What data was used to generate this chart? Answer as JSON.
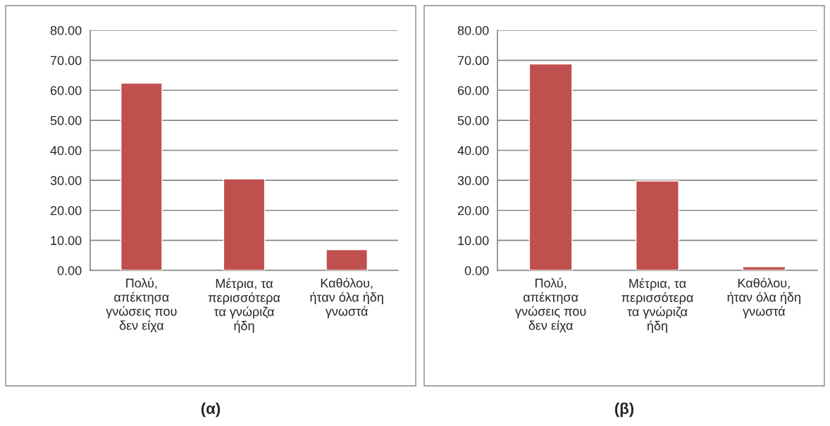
{
  "chart_data": [
    {
      "type": "bar",
      "title": "(α)",
      "categories": [
        "Πολύ,\nαπέκτησα\nγνώσεις που\nδεν είχα",
        "Μέτρια, τα\nπερισσότερα\nτα γνώριζα\nήδη",
        "Καθόλου,\nήταν όλα ήδη\nγνωστά"
      ],
      "values": [
        62.4,
        30.5,
        6.9
      ],
      "color": "#c0504d",
      "ylim": [
        0,
        80
      ],
      "yticks": [
        {
          "value": 0,
          "label": "0.00"
        },
        {
          "value": 10,
          "label": "10.00"
        },
        {
          "value": 20,
          "label": "20.00"
        },
        {
          "value": 30,
          "label": "30.00"
        },
        {
          "value": 40,
          "label": "40.00"
        },
        {
          "value": 50,
          "label": "50.00"
        },
        {
          "value": 60,
          "label": "60.00"
        },
        {
          "value": 70,
          "label": "70.00"
        },
        {
          "value": 80,
          "label": "80.00"
        }
      ],
      "grid": "y",
      "legend": false
    },
    {
      "type": "bar",
      "title": "(β)",
      "categories": [
        "Πολύ,\nαπέκτησα\nγνώσεις που\nδεν είχα",
        "Μέτρια, τα\nπερισσότερα\nτα γνώριζα\nήδη",
        "Καθόλου,\nήταν όλα ήδη\nγνωστά"
      ],
      "values": [
        68.8,
        29.8,
        1.2
      ],
      "color": "#c0504d",
      "ylim": [
        0,
        80
      ],
      "yticks": [
        {
          "value": 0,
          "label": "0.00"
        },
        {
          "value": 10,
          "label": "10.00"
        },
        {
          "value": 20,
          "label": "20.00"
        },
        {
          "value": 30,
          "label": "30.00"
        },
        {
          "value": 40,
          "label": "40.00"
        },
        {
          "value": 50,
          "label": "50.00"
        },
        {
          "value": 60,
          "label": "60.00"
        },
        {
          "value": 70,
          "label": "70.00"
        },
        {
          "value": 80,
          "label": "80.00"
        }
      ],
      "grid": "y",
      "legend": false
    }
  ]
}
